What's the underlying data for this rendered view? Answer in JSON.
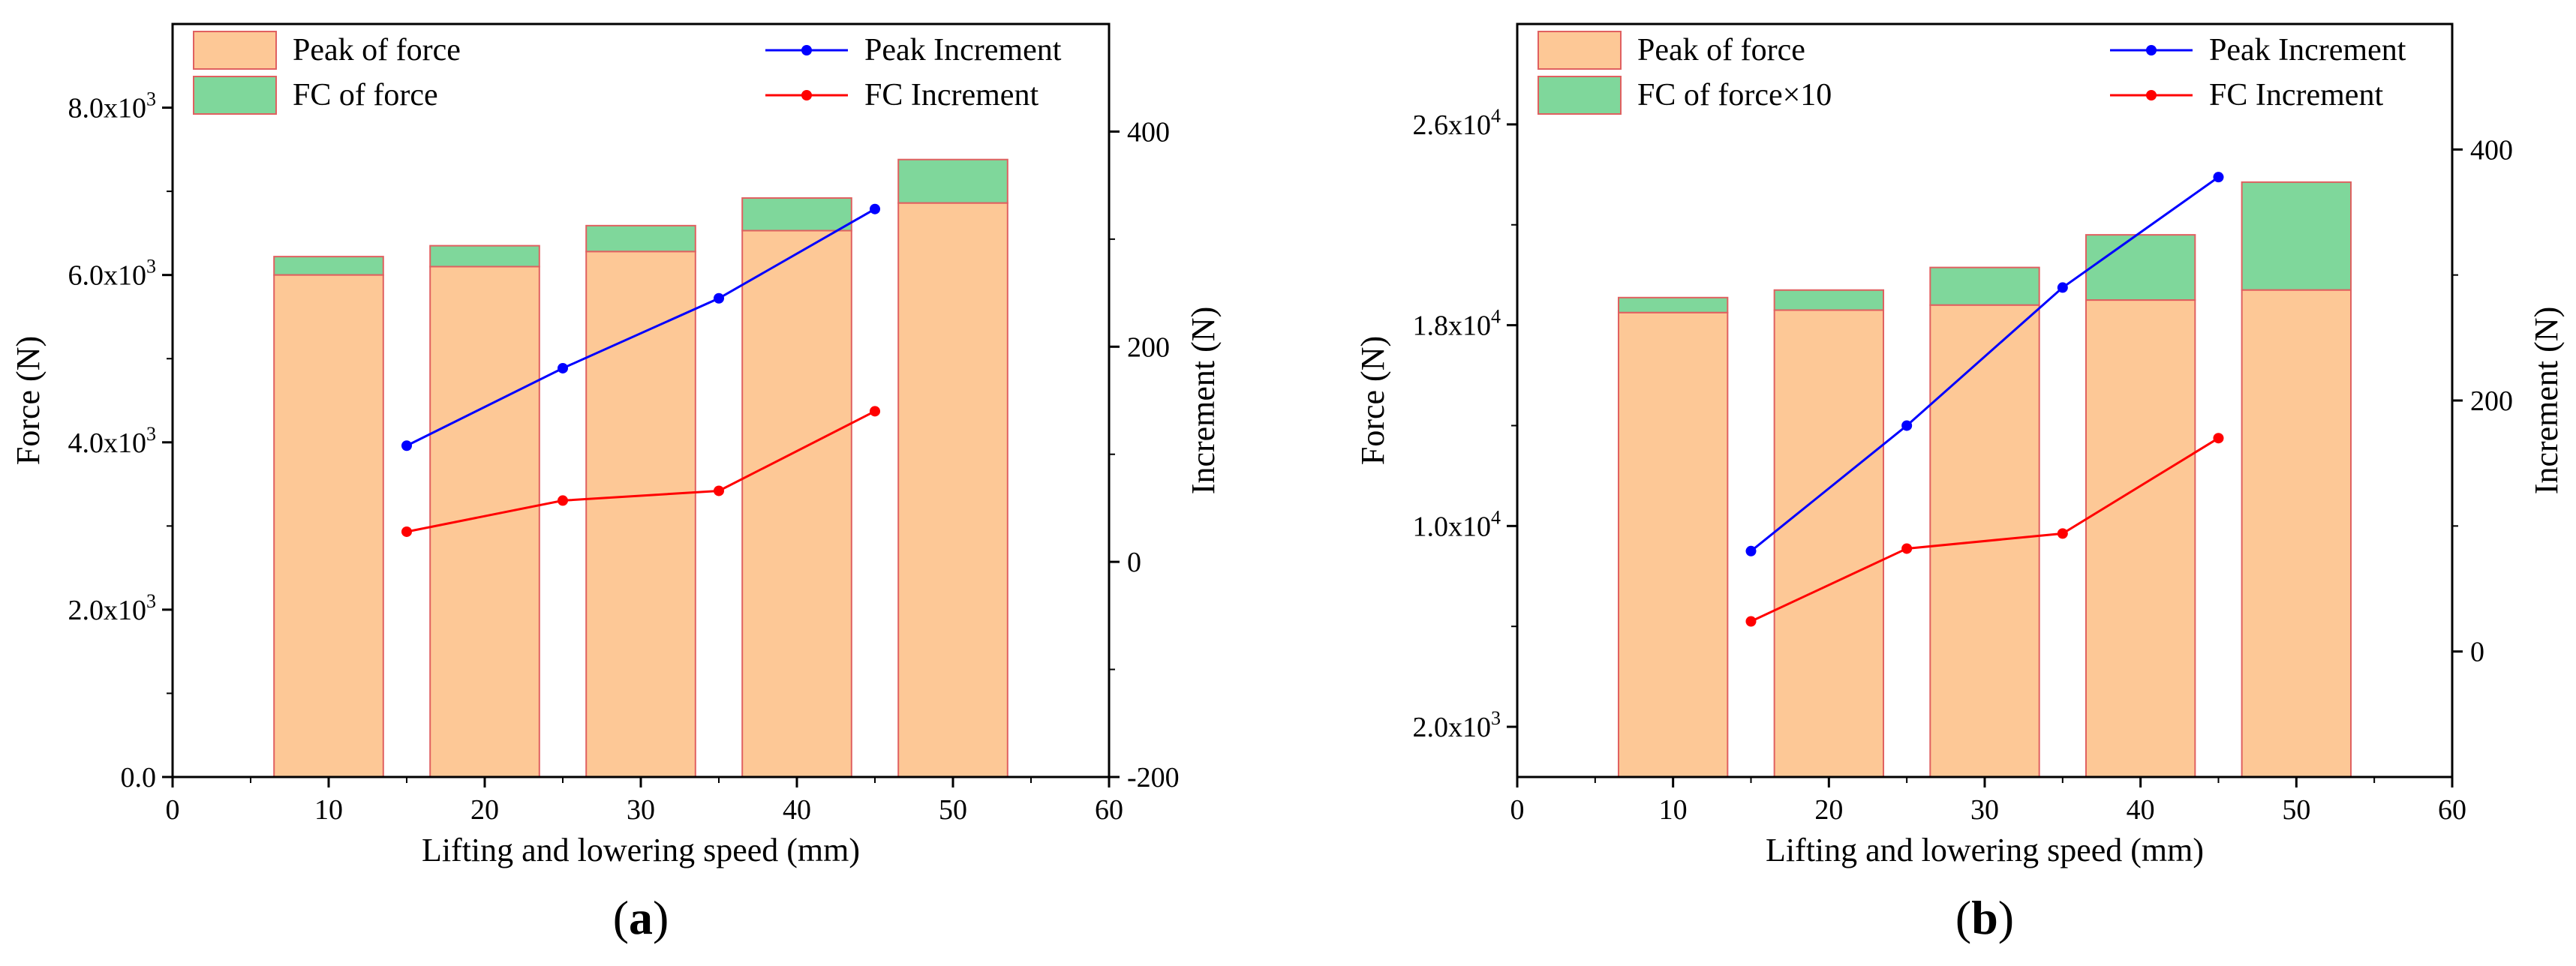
{
  "chart_data": [
    {
      "type": "bar",
      "panel_label": "(a)",
      "panel_letter": "a",
      "stacked": true,
      "xlabel": "Lifting and lowering speed (mm)",
      "ylabel": "Force (N)",
      "y2label": "Increment (N)",
      "xlim": [
        0,
        60
      ],
      "ylim": [
        0,
        9000
      ],
      "y2lim": [
        -200,
        500
      ],
      "xticks": [
        0,
        10,
        20,
        30,
        40,
        50,
        60
      ],
      "yticks": [
        {
          "value": 0,
          "mantissa": "0.0",
          "exp": ""
        },
        {
          "value": 2000,
          "mantissa": "2.0x10",
          "exp": "3"
        },
        {
          "value": 4000,
          "mantissa": "4.0x10",
          "exp": "3"
        },
        {
          "value": 6000,
          "mantissa": "6.0x10",
          "exp": "3"
        },
        {
          "value": 8000,
          "mantissa": "8.0x10",
          "exp": "3"
        }
      ],
      "y2ticks": [
        -200,
        0,
        200,
        400
      ],
      "bars": {
        "x": [
          10,
          20,
          30,
          40,
          50
        ],
        "width": 7,
        "peak_name": "Peak of force",
        "peak": [
          6000,
          6100,
          6280,
          6530,
          6860
        ],
        "fc_name": "FC of force",
        "fc_top": [
          6220,
          6350,
          6590,
          6920,
          7380
        ]
      },
      "lines": [
        {
          "name": "Peak Increment",
          "color": "#0000ff",
          "x": [
            15,
            25,
            35,
            45
          ],
          "y": [
            108,
            180,
            245,
            328
          ]
        },
        {
          "name": "FC Increment",
          "color": "#ff0000",
          "x": [
            15,
            25,
            35,
            45
          ],
          "y": [
            28,
            57,
            66,
            140
          ]
        }
      ]
    },
    {
      "type": "bar",
      "panel_label": "(b)",
      "panel_letter": "b",
      "stacked": true,
      "xlabel": "Lifting and lowering speed (mm)",
      "ylabel": "Force (N)",
      "y2label": "Increment (N)",
      "xlim": [
        0,
        60
      ],
      "ylim": [
        0,
        30000
      ],
      "y2lim": [
        -100,
        500
      ],
      "xticks": [
        0,
        10,
        20,
        30,
        40,
        50,
        60
      ],
      "yticks": [
        {
          "value": 2000,
          "mantissa": "2.0x10",
          "exp": "3"
        },
        {
          "value": 10000,
          "mantissa": "1.0x10",
          "exp": "4"
        },
        {
          "value": 18000,
          "mantissa": "1.8x10",
          "exp": "4"
        },
        {
          "value": 26000,
          "mantissa": "2.6x10",
          "exp": "4"
        }
      ],
      "y2ticks": [
        0,
        200,
        400
      ],
      "bars": {
        "x": [
          10,
          20,
          30,
          40,
          50
        ],
        "width": 7,
        "peak_name": "Peak of force",
        "peak": [
          18500,
          18600,
          18800,
          19000,
          19400
        ],
        "fc_name": "FC of force×10",
        "fc_top": [
          19100,
          19400,
          20300,
          21600,
          23700
        ]
      },
      "lines": [
        {
          "name": "Peak Increment",
          "color": "#0000ff",
          "x": [
            15,
            25,
            35,
            45
          ],
          "y": [
            80,
            180,
            290,
            378
          ]
        },
        {
          "name": "FC Increment",
          "color": "#ff0000",
          "x": [
            15,
            25,
            35,
            45
          ],
          "y": [
            24,
            82,
            94,
            170
          ]
        }
      ]
    }
  ],
  "colors": {
    "peak_fill": "#fdc896",
    "fc_fill": "#7fd79b",
    "bar_stroke": "#e06060",
    "axis": "#000000"
  }
}
